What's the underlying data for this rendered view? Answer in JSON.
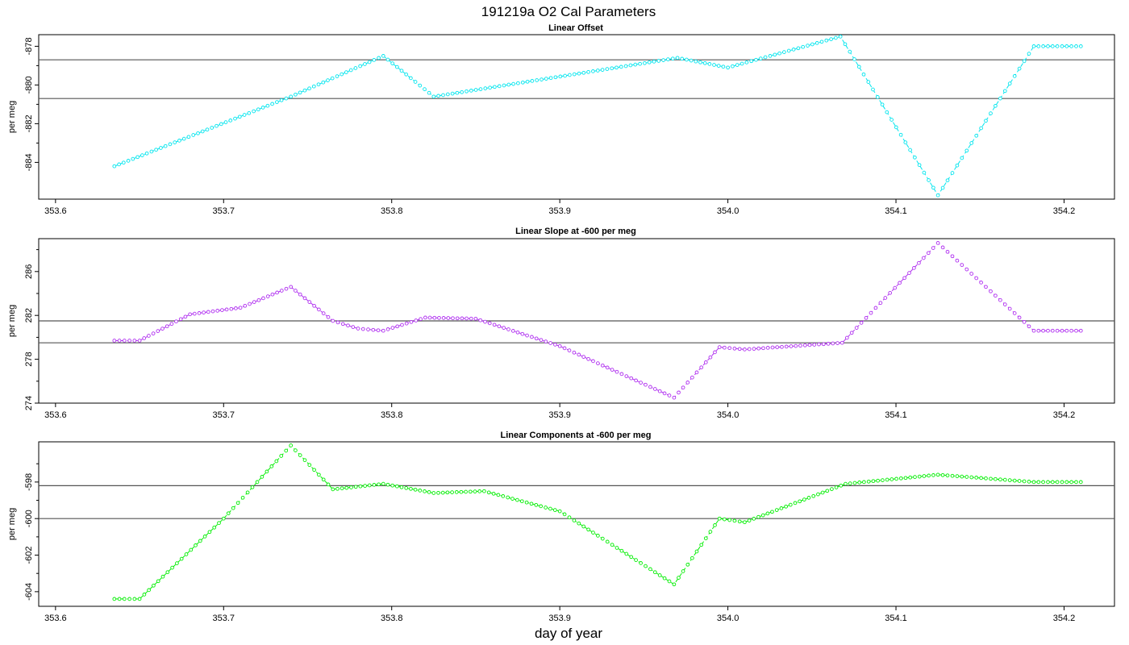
{
  "chart_data": {
    "title": "191219a   O2 Cal Parameters",
    "xlabel": "day of year",
    "panels": [
      {
        "type": "line",
        "title": "Linear Offset",
        "ylabel": "per meg",
        "xlim": [
          353.59,
          354.23
        ],
        "ylim": [
          -885.9,
          -877.4
        ],
        "xticks": [
          353.6,
          353.7,
          353.8,
          353.9,
          354.0,
          354.1,
          354.2
        ],
        "xticklabels": [
          "353.6",
          "353.7",
          "353.8",
          "353.9",
          "354.0",
          "354.1",
          "354.2"
        ],
        "yticks": [
          -884,
          -882,
          -880,
          -878
        ],
        "yticklabels": [
          "-884",
          "-882",
          "-880",
          "-878"
        ],
        "hlines": [
          -878.7,
          -880.7
        ],
        "color": "#00e5ee",
        "x": [
          353.635,
          353.74,
          353.795,
          353.825,
          353.97,
          354.0,
          354.067,
          354.125,
          354.182,
          354.21
        ],
        "y": [
          -884.2,
          -880.6,
          -878.5,
          -880.6,
          -878.6,
          -879.1,
          -877.5,
          -885.7,
          -878.0,
          -878.0
        ]
      },
      {
        "type": "line",
        "title": "Linear Slope at -600 per meg",
        "ylabel": "per meg",
        "xlim": [
          353.59,
          354.23
        ],
        "ylim": [
          274.0,
          289.0
        ],
        "xticks": [
          353.6,
          353.7,
          353.8,
          353.9,
          354.0,
          354.1,
          354.2
        ],
        "xticklabels": [
          "353.6",
          "353.7",
          "353.8",
          "353.9",
          "354.0",
          "354.1",
          "354.2"
        ],
        "yticks": [
          274,
          278,
          282,
          286
        ],
        "yticklabels": [
          "274",
          "278",
          "282",
          "286"
        ],
        "hlines": [
          281.5,
          279.5
        ],
        "color": "#b030f0",
        "x": [
          353.635,
          353.65,
          353.68,
          353.71,
          353.74,
          353.765,
          353.78,
          353.795,
          353.82,
          353.85,
          353.9,
          353.968,
          353.995,
          354.01,
          354.068,
          354.125,
          354.182,
          354.21
        ],
        "y": [
          279.7,
          279.7,
          282.1,
          282.7,
          284.6,
          281.5,
          280.8,
          280.6,
          281.8,
          281.7,
          279.2,
          274.5,
          279.1,
          278.9,
          279.5,
          288.6,
          280.6,
          280.6
        ]
      },
      {
        "type": "line",
        "title": "Linear Components at -600 per meg",
        "ylabel": "per meg",
        "xlim": [
          353.59,
          354.23
        ],
        "ylim": [
          -604.8,
          -595.8
        ],
        "xticks": [
          353.6,
          353.7,
          353.8,
          353.9,
          354.0,
          354.1,
          354.2
        ],
        "xticklabels": [
          "353.6",
          "353.7",
          "353.8",
          "353.9",
          "354.0",
          "354.1",
          "354.2"
        ],
        "yticks": [
          -604,
          -602,
          -600,
          -598
        ],
        "yticklabels": [
          "-604",
          "-602",
          "-600",
          "-598"
        ],
        "hlines": [
          -598.2,
          -600.0
        ],
        "color": "#00ee00",
        "x": [
          353.635,
          353.65,
          353.7,
          353.74,
          353.765,
          353.795,
          353.825,
          353.855,
          353.9,
          353.968,
          353.995,
          354.01,
          354.07,
          354.125,
          354.182,
          354.21
        ],
        "y": [
          -604.4,
          -604.4,
          -600.0,
          -596.0,
          -598.4,
          -598.1,
          -598.6,
          -598.5,
          -599.6,
          -603.6,
          -600.0,
          -600.2,
          -598.1,
          -597.6,
          -598.0,
          -598.0
        ]
      }
    ]
  }
}
